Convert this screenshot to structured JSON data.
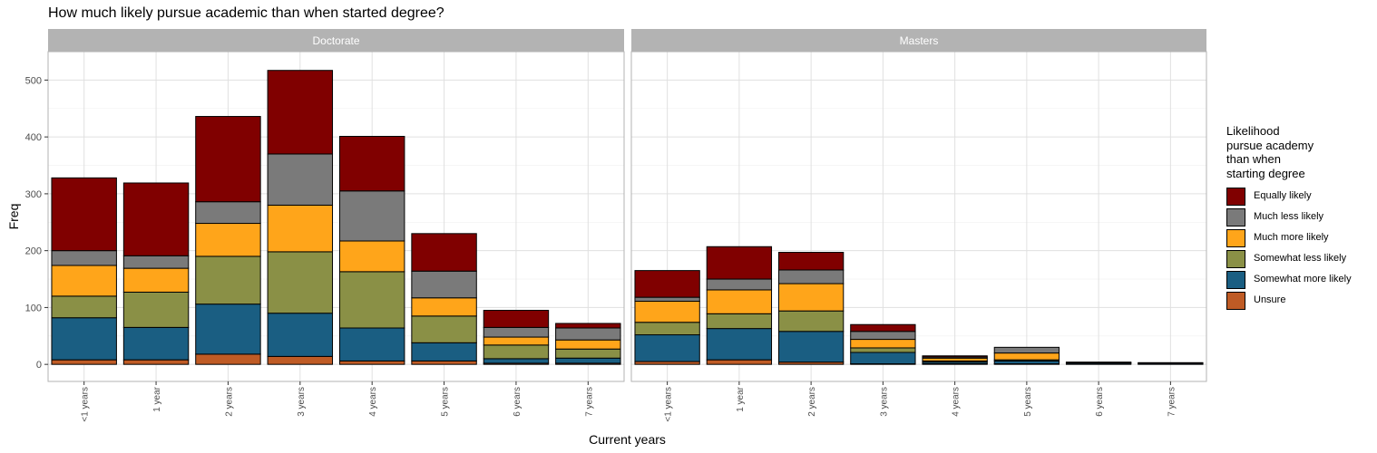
{
  "chart_data": {
    "type": "bar",
    "stacked": true,
    "title": "How much likely pursue academic than when started degree?",
    "xlabel": "Current years",
    "ylabel": "Freq",
    "ylim": [
      -30,
      550
    ],
    "yticks": [
      0,
      100,
      200,
      300,
      400,
      500
    ],
    "grid": true,
    "legend_position": "right",
    "legend_title": "Likelihood pursue academy than when starting degree",
    "legend_title_lines": [
      "Likelihood",
      "pursue academy",
      "than when",
      "starting degree"
    ],
    "categories": [
      "<1 years",
      "1 year",
      "2 years",
      "3 years",
      "4 years",
      "5 years",
      "6 years",
      "7 years"
    ],
    "series": [
      {
        "name": "Unsure",
        "color": "#BF5B25"
      },
      {
        "name": "Somewhat more likely",
        "color": "#1A5E82"
      },
      {
        "name": "Somewhat less likely",
        "color": "#8A9046"
      },
      {
        "name": "Much more likely",
        "color": "#FFA51A"
      },
      {
        "name": "Much less likely",
        "color": "#7A7A7A"
      },
      {
        "name": "Equally likely",
        "color": "#800000"
      }
    ],
    "legend_order": [
      "Equally likely",
      "Much less likely",
      "Much more likely",
      "Somewhat less likely",
      "Somewhat more likely",
      "Unsure"
    ],
    "panels": [
      {
        "name": "Doctorate",
        "values": {
          "Unsure": [
            8,
            8,
            18,
            14,
            6,
            6,
            2,
            2
          ],
          "Somewhat more likely": [
            74,
            57,
            88,
            76,
            58,
            32,
            8,
            9
          ],
          "Somewhat less likely": [
            38,
            62,
            84,
            108,
            99,
            47,
            24,
            16
          ],
          "Much more likely": [
            54,
            42,
            58,
            82,
            54,
            32,
            14,
            16
          ],
          "Much less likely": [
            26,
            22,
            38,
            90,
            88,
            47,
            17,
            21
          ],
          "Equally likely": [
            128,
            128,
            150,
            147,
            96,
            66,
            30,
            8
          ]
        }
      },
      {
        "name": "Masters",
        "values": {
          "Unsure": [
            5,
            8,
            4,
            1,
            1,
            1,
            0,
            0
          ],
          "Somewhat more likely": [
            47,
            55,
            54,
            20,
            3,
            5,
            2,
            2
          ],
          "Somewhat less likely": [
            22,
            26,
            36,
            8,
            2,
            2,
            0,
            0
          ],
          "Much more likely": [
            37,
            42,
            48,
            15,
            5,
            12,
            1,
            0
          ],
          "Much less likely": [
            7,
            19,
            24,
            14,
            2,
            10,
            0,
            1
          ],
          "Equally likely": [
            47,
            57,
            31,
            12,
            2,
            0,
            1,
            0
          ]
        }
      }
    ]
  }
}
